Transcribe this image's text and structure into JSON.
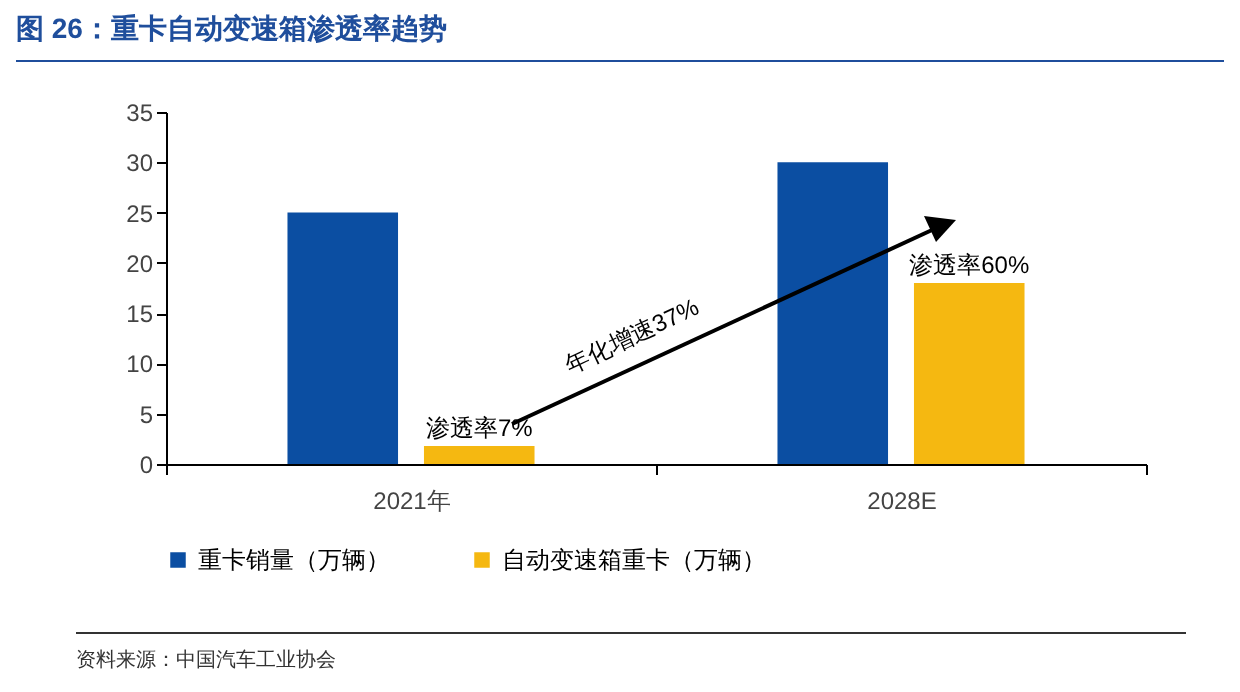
{
  "chart_data": {
    "type": "bar",
    "title": "图 26：重卡自动变速箱渗透率趋势",
    "categories": [
      "2021年",
      "2028E"
    ],
    "series": [
      {
        "name": "重卡销量（万辆）",
        "color": "#0b4ea2",
        "values": [
          25,
          30
        ]
      },
      {
        "name": "自动变速箱重卡（万辆）",
        "color": "#f5b811",
        "values": [
          1.8,
          18
        ]
      }
    ],
    "ylim": [
      0,
      35
    ],
    "yticks": [
      0,
      5,
      10,
      15,
      20,
      25,
      30,
      35
    ],
    "grid": false,
    "legend": "bottom",
    "annotations": [
      "渗透率7%",
      "渗透率60%",
      "年化增速37%",
      "资料来源：中国汽车工业协会"
    ]
  }
}
